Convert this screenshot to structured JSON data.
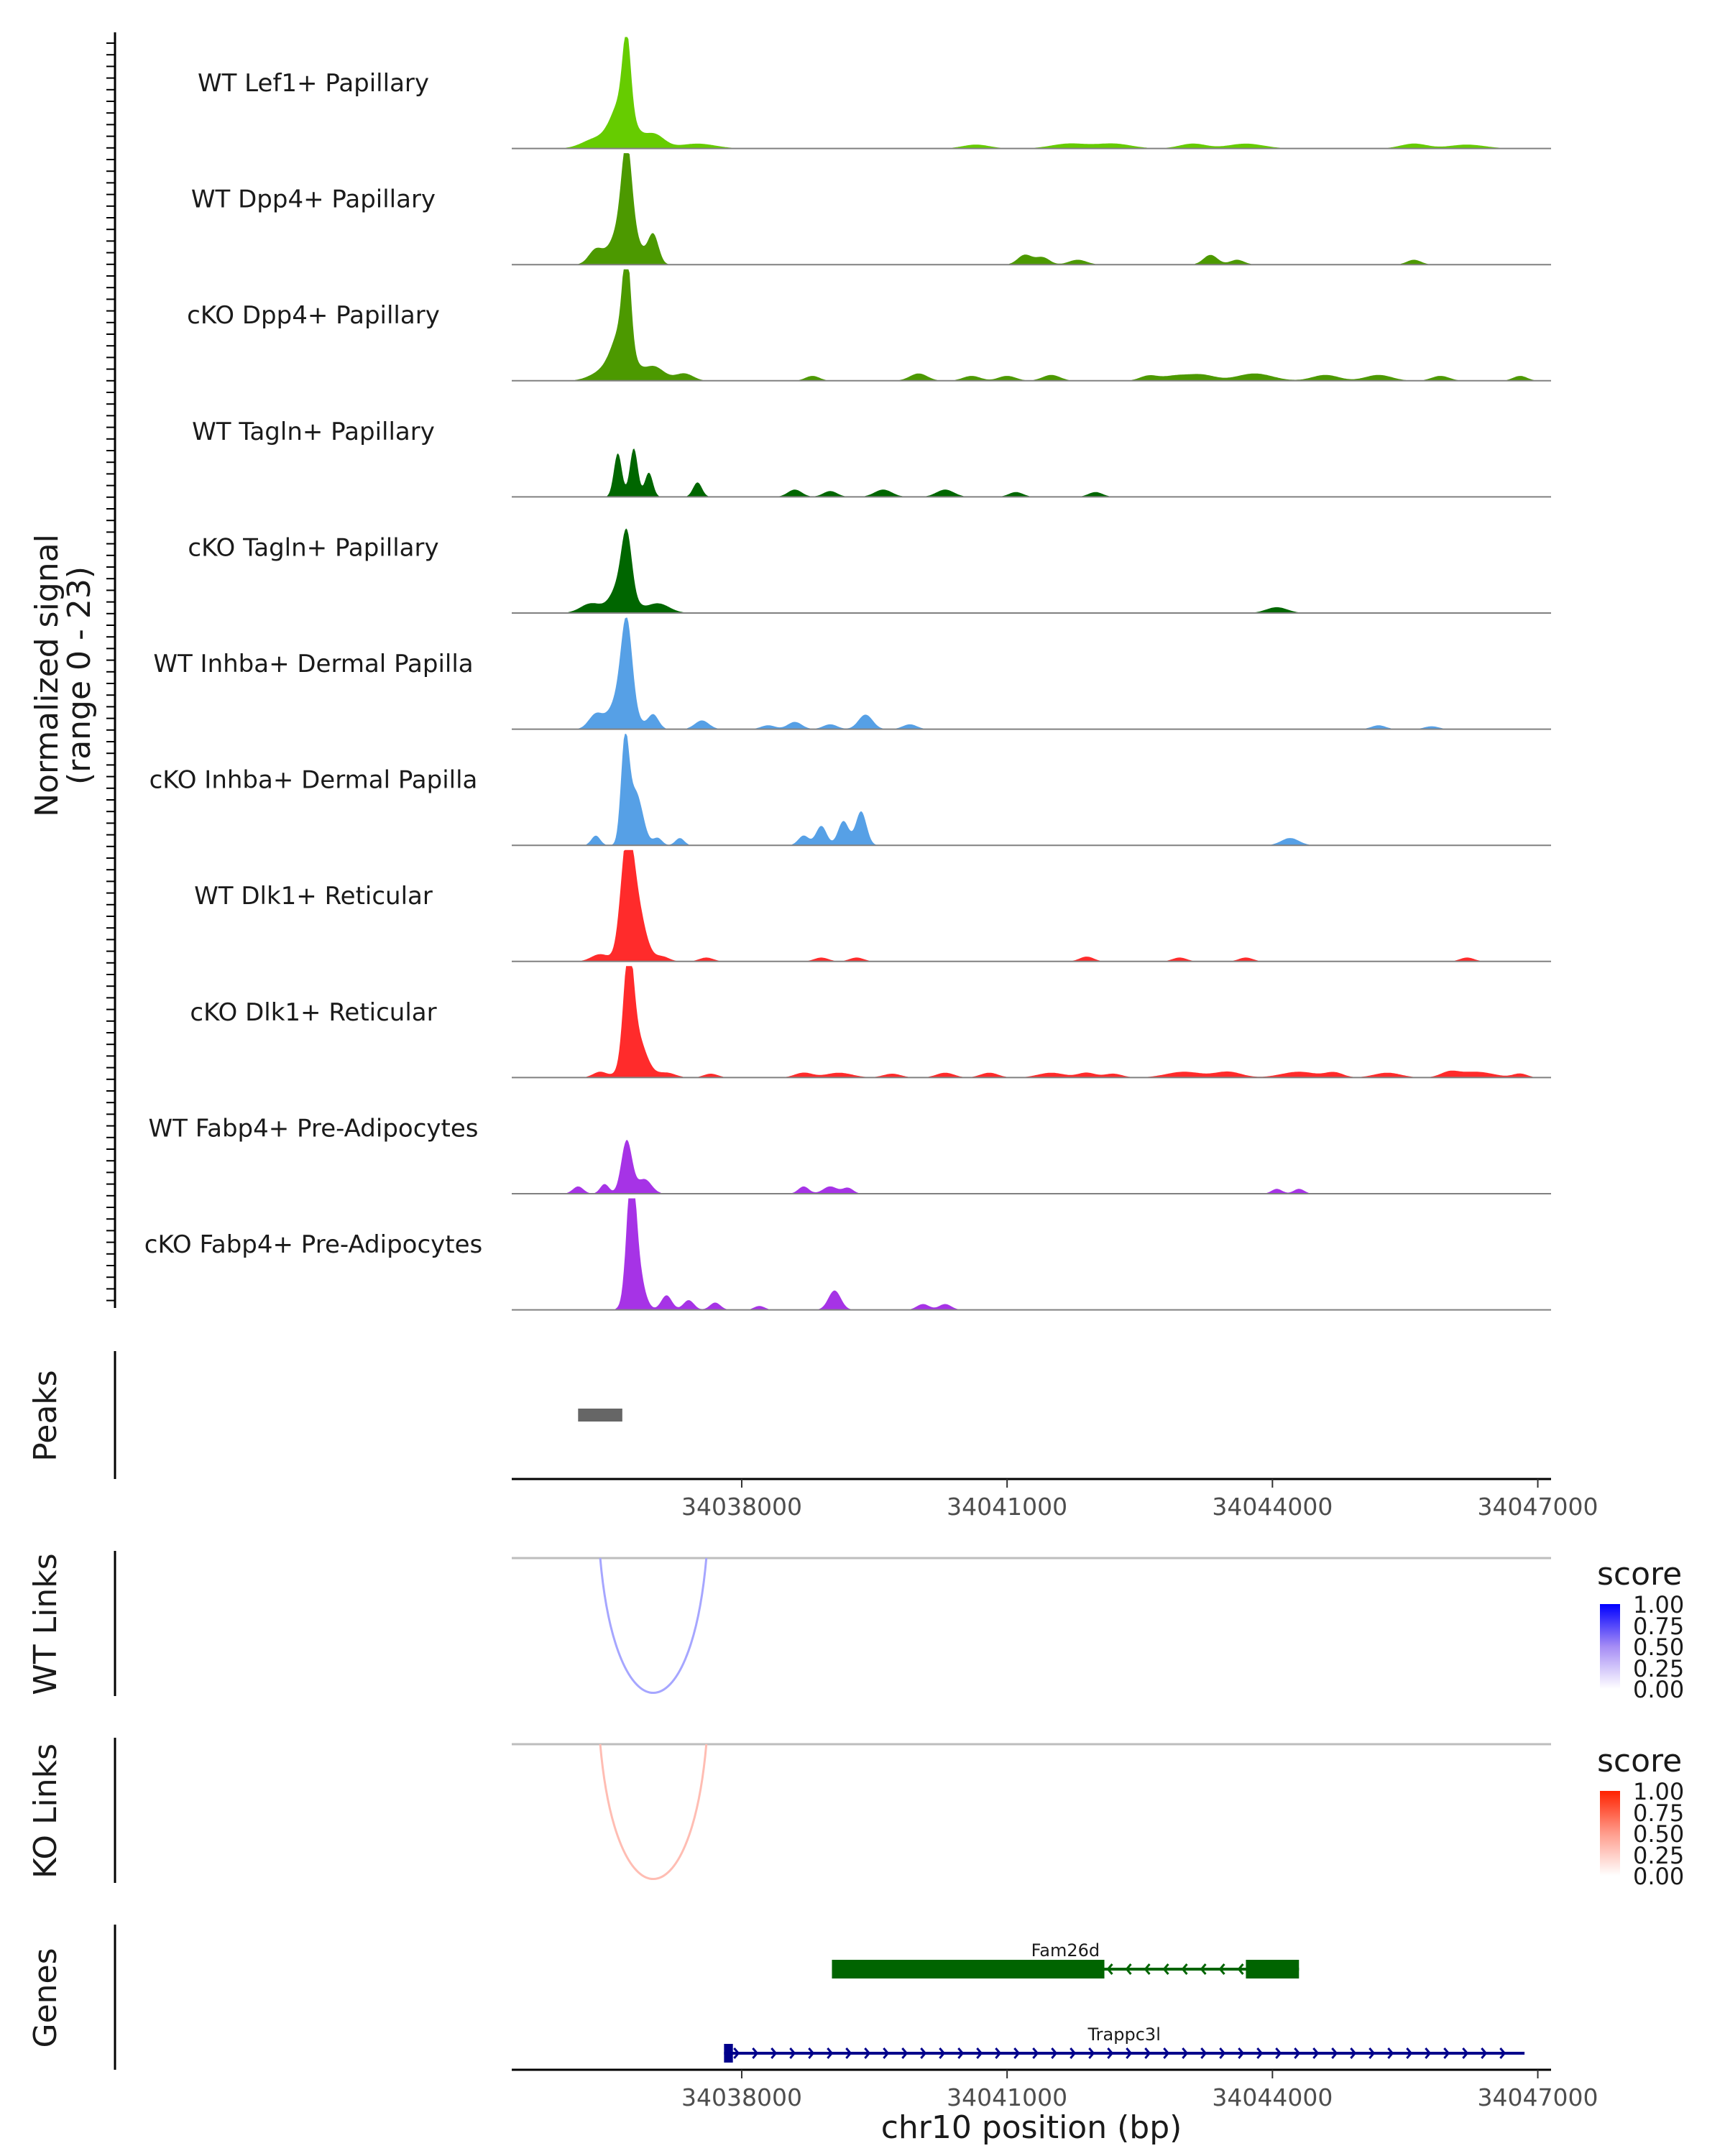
{
  "chart_data": {
    "type": "genome-coverage",
    "x_axis": {
      "label": "chr10 position (bp)",
      "range": [
        34035400,
        34047150
      ],
      "ticks": [
        34038000,
        34041000,
        34044000,
        34047000
      ],
      "tick_labels": [
        "34038000",
        "34041000",
        "34044000",
        "34047000"
      ]
    },
    "coverage": {
      "ylabel_line1": "Normalized signal",
      "ylabel_line2": "(range 0 - 23)",
      "y_range": [
        0,
        23
      ],
      "tracks": [
        {
          "name": "WT Lef1+ Papillary",
          "color": "#66CC00",
          "peaks": [
            [
              34036700,
              15,
              45
            ],
            [
              34036650,
              10,
              120
            ],
            [
              34037000,
              3,
              120
            ],
            [
              34036350,
              2,
              150
            ],
            [
              34037500,
              1,
              200
            ],
            [
              34040650,
              0.8,
              150
            ],
            [
              34041700,
              1,
              200
            ],
            [
              34042200,
              1,
              200
            ],
            [
              34043100,
              1,
              150
            ],
            [
              34043700,
              1,
              200
            ],
            [
              34045600,
              1,
              150
            ],
            [
              34046200,
              0.8,
              200
            ]
          ]
        },
        {
          "name": "WT Dpp4+ Papillary",
          "color": "#4C9900",
          "peaks": [
            [
              34036700,
              16,
              55
            ],
            [
              34036680,
              10,
              130
            ],
            [
              34037000,
              6,
              60
            ],
            [
              34036350,
              3,
              80
            ],
            [
              34041200,
              2,
              80
            ],
            [
              34041400,
              1.5,
              80
            ],
            [
              34041800,
              1,
              100
            ],
            [
              34043300,
              2,
              80
            ],
            [
              34043600,
              1,
              80
            ],
            [
              34045600,
              1,
              80
            ]
          ]
        },
        {
          "name": "cKO Dpp4+ Papillary",
          "color": "#4C9900",
          "peaks": [
            [
              34036700,
              18,
              45
            ],
            [
              34036650,
              10,
              110
            ],
            [
              34037000,
              3,
              120
            ],
            [
              34036450,
              2,
              150
            ],
            [
              34037350,
              1.5,
              100
            ],
            [
              34038800,
              1,
              80
            ],
            [
              34040000,
              1.5,
              100
            ],
            [
              34040600,
              1,
              100
            ],
            [
              34041000,
              1,
              100
            ],
            [
              34041500,
              1.2,
              100
            ],
            [
              34042600,
              1,
              100
            ],
            [
              34042900,
              1,
              150
            ],
            [
              34043200,
              1.2,
              150
            ],
            [
              34043800,
              1.5,
              200
            ],
            [
              34044600,
              1.2,
              150
            ],
            [
              34045200,
              1.2,
              150
            ],
            [
              34045900,
              1,
              100
            ],
            [
              34046800,
              1,
              80
            ]
          ]
        },
        {
          "name": "WT Tagln+ Papillary",
          "color": "#006600",
          "peaks": [
            [
              34036600,
              9,
              45
            ],
            [
              34036780,
              10,
              45
            ],
            [
              34036950,
              5,
              45
            ],
            [
              34037500,
              3,
              50
            ],
            [
              34038600,
              1.5,
              80
            ],
            [
              34039000,
              1.2,
              80
            ],
            [
              34039600,
              1.5,
              100
            ],
            [
              34040300,
              1.5,
              100
            ],
            [
              34041100,
              1,
              80
            ],
            [
              34042000,
              1,
              80
            ]
          ]
        },
        {
          "name": "cKO Tagln+ Papillary",
          "color": "#006600",
          "peaks": [
            [
              34036700,
              11,
              55
            ],
            [
              34036650,
              7,
              110
            ],
            [
              34036300,
              2,
              120
            ],
            [
              34037050,
              2,
              130
            ],
            [
              34044050,
              1.2,
              120
            ]
          ]
        },
        {
          "name": "WT Inhba+ Dermal Papilla",
          "color": "#56A0E6",
          "peaks": [
            [
              34036700,
              16,
              60
            ],
            [
              34036650,
              8,
              120
            ],
            [
              34036350,
              3,
              80
            ],
            [
              34037000,
              3,
              60
            ],
            [
              34037550,
              1.8,
              80
            ],
            [
              34038300,
              0.8,
              80
            ],
            [
              34038600,
              1.5,
              80
            ],
            [
              34039000,
              1,
              80
            ],
            [
              34039400,
              3,
              80
            ],
            [
              34039900,
              1,
              80
            ],
            [
              34045200,
              0.8,
              80
            ],
            [
              34045800,
              0.6,
              80
            ]
          ]
        },
        {
          "name": "cKO Inhba+ Dermal Papilla",
          "color": "#56A0E6",
          "peaks": [
            [
              34036680,
              20,
              45
            ],
            [
              34036800,
              11,
              80
            ],
            [
              34036350,
              2,
              50
            ],
            [
              34037050,
              1.5,
              50
            ],
            [
              34037300,
              1.5,
              50
            ],
            [
              34038700,
              2,
              60
            ],
            [
              34038900,
              4,
              60
            ],
            [
              34039150,
              5,
              60
            ],
            [
              34039350,
              7,
              60
            ],
            [
              34044200,
              1.5,
              100
            ]
          ]
        },
        {
          "name": "WT Dlk1+ Reticular",
          "color": "#FF2B2B",
          "peaks": [
            [
              34036700,
              20,
              70
            ],
            [
              34036800,
              12,
              100
            ],
            [
              34036400,
              1.5,
              100
            ],
            [
              34037100,
              1,
              80
            ],
            [
              34037600,
              0.8,
              80
            ],
            [
              34038900,
              0.8,
              80
            ],
            [
              34039300,
              0.8,
              80
            ],
            [
              34041900,
              1,
              80
            ],
            [
              34042950,
              0.8,
              80
            ],
            [
              34043700,
              0.8,
              80
            ],
            [
              34046200,
              0.8,
              80
            ]
          ]
        },
        {
          "name": "cKO Dlk1+ Reticular",
          "color": "#FF2B2B",
          "peaks": [
            [
              34036720,
              21,
              55
            ],
            [
              34036800,
              9,
              110
            ],
            [
              34036400,
              1.2,
              80
            ],
            [
              34037150,
              1,
              100
            ],
            [
              34037650,
              0.8,
              80
            ],
            [
              34038700,
              1,
              100
            ],
            [
              34039100,
              1,
              150
            ],
            [
              34039700,
              0.8,
              100
            ],
            [
              34040300,
              1,
              100
            ],
            [
              34040800,
              1,
              100
            ],
            [
              34041500,
              1,
              150
            ],
            [
              34041900,
              1,
              100
            ],
            [
              34042200,
              0.8,
              100
            ],
            [
              34043000,
              1.2,
              200
            ],
            [
              34043500,
              1.2,
              150
            ],
            [
              34044300,
              1.2,
              200
            ],
            [
              34044700,
              1,
              100
            ],
            [
              34045300,
              1,
              150
            ],
            [
              34046000,
              1,
              100
            ],
            [
              34046300,
              1.2,
              200
            ],
            [
              34046800,
              0.8,
              80
            ]
          ]
        },
        {
          "name": "WT Fabp4+ Pre-Adipocytes",
          "color": "#A633E6",
          "peaks": [
            [
              34036700,
              11,
              60
            ],
            [
              34036900,
              3,
              80
            ],
            [
              34036450,
              2,
              50
            ],
            [
              34036150,
              1.5,
              60
            ],
            [
              34038700,
              1.5,
              60
            ],
            [
              34039000,
              1.5,
              80
            ],
            [
              34039200,
              1.2,
              60
            ],
            [
              34044050,
              1,
              60
            ],
            [
              34044300,
              1,
              60
            ]
          ]
        },
        {
          "name": "cKO Fabp4+ Pre-Adipocytes",
          "color": "#A633E6",
          "peaks": [
            [
              34036750,
              22,
              50
            ],
            [
              34036800,
              10,
              80
            ],
            [
              34037150,
              3,
              60
            ],
            [
              34037400,
              2,
              60
            ],
            [
              34037700,
              1.5,
              60
            ],
            [
              34038200,
              0.8,
              60
            ],
            [
              34039050,
              4,
              70
            ],
            [
              34040050,
              1.2,
              70
            ],
            [
              34040300,
              1.2,
              70
            ]
          ]
        }
      ]
    },
    "peaks_track": {
      "label": "Peaks",
      "regions": [
        [
          34036150,
          34036650
        ]
      ],
      "color": "#666666"
    },
    "links_tracks": [
      {
        "label": "WT Links",
        "start": 34036400,
        "end": 34037600,
        "score": 0.35,
        "legend_title": "score",
        "legend_labels": [
          "1.00",
          "0.75",
          "0.50",
          "0.25",
          "0.00"
        ],
        "color_high": "#0000FF",
        "color_low": "#FFFFFF"
      },
      {
        "label": "KO Links",
        "start": 34036400,
        "end": 34037600,
        "score": 0.3,
        "legend_title": "score",
        "legend_labels": [
          "1.00",
          "0.75",
          "0.50",
          "0.25",
          "0.00"
        ],
        "color_high": "#FF2200",
        "color_low": "#FFFFFF"
      }
    ],
    "genes_track": {
      "label": "Genes",
      "genes": [
        {
          "name": "Fam26d",
          "start": 34039020,
          "end": 34044300,
          "strand": "-",
          "exons": [
            [
              34039020,
              34042100
            ],
            [
              34043700,
              34044300
            ]
          ],
          "color": "#006400"
        },
        {
          "name": "Trappc3l",
          "start": 34037800,
          "end": 34046850,
          "strand": "+",
          "exons": [
            [
              34037800,
              34037900
            ]
          ],
          "color": "#00008B"
        }
      ]
    }
  }
}
